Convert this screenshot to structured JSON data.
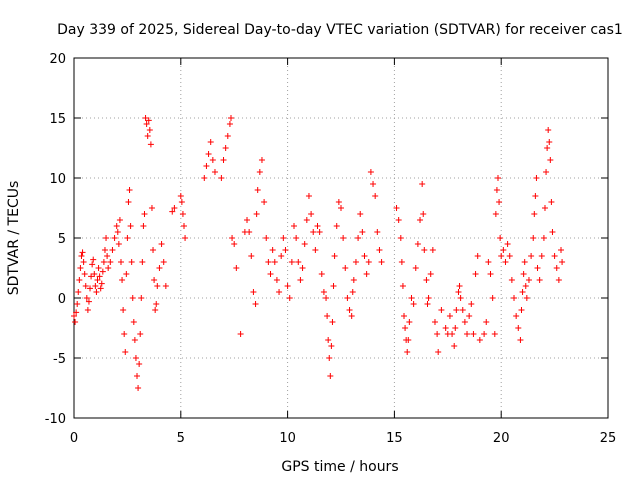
{
  "chart_data": {
    "type": "scatter",
    "title": "Day 339 of 2025, Sidereal Day-to-day VTEC variation (SDTVAR) for receiver cas1",
    "xlabel": "GPS time / hours",
    "ylabel": "SDTVAR / TECUs",
    "xlim": [
      0,
      25
    ],
    "ylim": [
      -10,
      20
    ],
    "x_ticks": [
      0,
      5,
      10,
      15,
      20,
      25
    ],
    "y_ticks": [
      -10,
      -5,
      0,
      5,
      10,
      15,
      20
    ],
    "x_tick_labels": [
      "0",
      "5",
      "10",
      "15",
      "20",
      "25"
    ],
    "y_tick_labels": [
      "-10",
      "-5",
      "0",
      "5",
      "10",
      "15",
      "20"
    ],
    "grid": true,
    "marker": "+",
    "series": [
      {
        "name": "cas1",
        "color": "#ff0000",
        "points": [
          [
            0.0,
            -1.5
          ],
          [
            0.05,
            -2.0
          ],
          [
            0.1,
            -1.2
          ],
          [
            0.15,
            -0.5
          ],
          [
            0.2,
            0.5
          ],
          [
            0.25,
            1.5
          ],
          [
            0.3,
            2.5
          ],
          [
            0.35,
            3.5
          ],
          [
            0.4,
            3.8
          ],
          [
            0.45,
            3.0
          ],
          [
            0.5,
            2.0
          ],
          [
            0.55,
            1.0
          ],
          [
            0.6,
            0.0
          ],
          [
            0.65,
            -1.0
          ],
          [
            0.7,
            -0.3
          ],
          [
            0.75,
            0.8
          ],
          [
            0.8,
            1.8
          ],
          [
            0.85,
            2.8
          ],
          [
            0.9,
            3.2
          ],
          [
            0.95,
            2.0
          ],
          [
            1.0,
            1.0
          ],
          [
            1.05,
            0.5
          ],
          [
            1.1,
            1.5
          ],
          [
            1.15,
            2.5
          ],
          [
            1.2,
            1.8
          ],
          [
            1.25,
            0.8
          ],
          [
            1.3,
            1.2
          ],
          [
            1.35,
            2.2
          ],
          [
            1.4,
            3.0
          ],
          [
            1.45,
            4.0
          ],
          [
            1.5,
            5.0
          ],
          [
            1.55,
            3.5
          ],
          [
            1.6,
            2.5
          ],
          [
            1.7,
            3.0
          ],
          [
            1.8,
            4.0
          ],
          [
            1.9,
            5.0
          ],
          [
            2.0,
            6.0
          ],
          [
            2.05,
            5.5
          ],
          [
            2.1,
            4.5
          ],
          [
            2.15,
            6.5
          ],
          [
            2.2,
            3.0
          ],
          [
            2.25,
            1.5
          ],
          [
            2.3,
            -1.0
          ],
          [
            2.35,
            -3.0
          ],
          [
            2.4,
            -4.5
          ],
          [
            2.45,
            2.0
          ],
          [
            2.5,
            5.0
          ],
          [
            2.55,
            8.0
          ],
          [
            2.6,
            9.0
          ],
          [
            2.65,
            6.0
          ],
          [
            2.7,
            3.0
          ],
          [
            2.75,
            0.0
          ],
          [
            2.8,
            -2.0
          ],
          [
            2.85,
            -3.5
          ],
          [
            2.9,
            -5.0
          ],
          [
            2.95,
            -6.5
          ],
          [
            3.0,
            -7.5
          ],
          [
            3.05,
            -5.5
          ],
          [
            3.1,
            -3.0
          ],
          [
            3.15,
            0.0
          ],
          [
            3.2,
            3.0
          ],
          [
            3.25,
            6.0
          ],
          [
            3.3,
            7.0
          ],
          [
            3.35,
            15.0
          ],
          [
            3.4,
            14.5
          ],
          [
            3.45,
            13.5
          ],
          [
            3.5,
            14.8
          ],
          [
            3.55,
            14.0
          ],
          [
            3.6,
            12.8
          ],
          [
            3.65,
            7.5
          ],
          [
            3.7,
            4.0
          ],
          [
            3.75,
            1.5
          ],
          [
            3.8,
            -1.0
          ],
          [
            3.85,
            -0.5
          ],
          [
            3.9,
            1.0
          ],
          [
            4.0,
            2.5
          ],
          [
            4.1,
            4.5
          ],
          [
            4.2,
            3.0
          ],
          [
            4.3,
            1.0
          ],
          [
            4.6,
            7.2
          ],
          [
            4.7,
            7.5
          ],
          [
            5.0,
            8.5
          ],
          [
            5.05,
            8.0
          ],
          [
            5.1,
            7.0
          ],
          [
            5.15,
            6.0
          ],
          [
            5.2,
            5.0
          ],
          [
            6.1,
            10.0
          ],
          [
            6.2,
            11.0
          ],
          [
            6.3,
            12.0
          ],
          [
            6.4,
            13.0
          ],
          [
            6.5,
            11.5
          ],
          [
            6.6,
            10.5
          ],
          [
            6.9,
            10.0
          ],
          [
            7.0,
            11.5
          ],
          [
            7.1,
            12.5
          ],
          [
            7.2,
            13.5
          ],
          [
            7.3,
            14.5
          ],
          [
            7.35,
            15.0
          ],
          [
            7.4,
            5.0
          ],
          [
            7.5,
            4.5
          ],
          [
            7.6,
            2.5
          ],
          [
            7.8,
            -3.0
          ],
          [
            8.0,
            5.5
          ],
          [
            8.1,
            6.5
          ],
          [
            8.2,
            5.5
          ],
          [
            8.3,
            3.5
          ],
          [
            8.4,
            0.5
          ],
          [
            8.5,
            -0.5
          ],
          [
            8.55,
            7.0
          ],
          [
            8.6,
            9.0
          ],
          [
            8.7,
            10.5
          ],
          [
            8.8,
            11.5
          ],
          [
            8.9,
            8.0
          ],
          [
            9.0,
            5.0
          ],
          [
            9.1,
            3.0
          ],
          [
            9.2,
            2.0
          ],
          [
            9.3,
            4.0
          ],
          [
            9.4,
            3.0
          ],
          [
            9.5,
            1.5
          ],
          [
            9.6,
            0.5
          ],
          [
            9.7,
            3.5
          ],
          [
            9.8,
            5.0
          ],
          [
            9.9,
            4.0
          ],
          [
            10.0,
            1.0
          ],
          [
            10.1,
            0.0
          ],
          [
            10.2,
            3.0
          ],
          [
            10.3,
            6.0
          ],
          [
            10.4,
            5.0
          ],
          [
            10.5,
            3.0
          ],
          [
            10.6,
            1.5
          ],
          [
            10.7,
            2.5
          ],
          [
            10.8,
            4.5
          ],
          [
            10.9,
            6.5
          ],
          [
            11.0,
            8.5
          ],
          [
            11.1,
            7.0
          ],
          [
            11.2,
            5.5
          ],
          [
            11.3,
            4.0
          ],
          [
            11.4,
            6.0
          ],
          [
            11.5,
            5.5
          ],
          [
            11.6,
            2.0
          ],
          [
            11.7,
            0.5
          ],
          [
            11.8,
            0.0
          ],
          [
            11.85,
            -1.5
          ],
          [
            11.9,
            -3.5
          ],
          [
            11.95,
            -5.0
          ],
          [
            12.0,
            -6.5
          ],
          [
            12.05,
            -4.0
          ],
          [
            12.1,
            -2.0
          ],
          [
            12.15,
            1.0
          ],
          [
            12.2,
            3.5
          ],
          [
            12.3,
            6.0
          ],
          [
            12.4,
            8.0
          ],
          [
            12.5,
            7.5
          ],
          [
            12.6,
            5.0
          ],
          [
            12.7,
            2.5
          ],
          [
            12.8,
            0.0
          ],
          [
            12.9,
            -1.0
          ],
          [
            13.0,
            -1.5
          ],
          [
            13.05,
            0.5
          ],
          [
            13.1,
            1.5
          ],
          [
            13.2,
            3.0
          ],
          [
            13.3,
            5.0
          ],
          [
            13.4,
            7.0
          ],
          [
            13.5,
            5.5
          ],
          [
            13.6,
            3.5
          ],
          [
            13.7,
            2.0
          ],
          [
            13.8,
            3.0
          ],
          [
            13.9,
            10.5
          ],
          [
            14.0,
            9.5
          ],
          [
            14.1,
            8.5
          ],
          [
            14.2,
            5.5
          ],
          [
            14.3,
            4.0
          ],
          [
            14.4,
            3.0
          ],
          [
            15.1,
            7.5
          ],
          [
            15.2,
            6.5
          ],
          [
            15.3,
            5.0
          ],
          [
            15.35,
            3.0
          ],
          [
            15.4,
            1.0
          ],
          [
            15.45,
            -1.5
          ],
          [
            15.5,
            -2.5
          ],
          [
            15.55,
            -3.5
          ],
          [
            15.6,
            -4.5
          ],
          [
            15.65,
            -3.5
          ],
          [
            15.7,
            -2.0
          ],
          [
            15.8,
            0.0
          ],
          [
            15.9,
            -0.5
          ],
          [
            16.0,
            2.5
          ],
          [
            16.1,
            4.5
          ],
          [
            16.2,
            6.5
          ],
          [
            16.3,
            9.5
          ],
          [
            16.35,
            7.0
          ],
          [
            16.4,
            4.0
          ],
          [
            16.5,
            1.5
          ],
          [
            16.55,
            -0.5
          ],
          [
            16.6,
            0.0
          ],
          [
            16.7,
            2.0
          ],
          [
            16.8,
            4.0
          ],
          [
            16.9,
            -2.0
          ],
          [
            17.0,
            -3.0
          ],
          [
            17.05,
            -4.5
          ],
          [
            17.2,
            -1.0
          ],
          [
            17.4,
            -2.5
          ],
          [
            17.5,
            -3.0
          ],
          [
            17.6,
            -1.5
          ],
          [
            17.7,
            -3.0
          ],
          [
            17.8,
            -4.0
          ],
          [
            17.85,
            -2.5
          ],
          [
            17.9,
            -1.0
          ],
          [
            18.0,
            0.5
          ],
          [
            18.05,
            1.0
          ],
          [
            18.1,
            0.0
          ],
          [
            18.2,
            -1.0
          ],
          [
            18.3,
            -2.0
          ],
          [
            18.4,
            -3.0
          ],
          [
            18.5,
            -1.5
          ],
          [
            18.6,
            -0.5
          ],
          [
            18.7,
            -3.0
          ],
          [
            18.8,
            2.0
          ],
          [
            18.9,
            3.5
          ],
          [
            19.0,
            -3.5
          ],
          [
            19.2,
            -3.0
          ],
          [
            19.3,
            -2.0
          ],
          [
            19.4,
            3.0
          ],
          [
            19.5,
            2.0
          ],
          [
            19.6,
            0.0
          ],
          [
            19.7,
            -3.0
          ],
          [
            19.75,
            7.0
          ],
          [
            19.8,
            9.0
          ],
          [
            19.85,
            10.0
          ],
          [
            19.9,
            8.0
          ],
          [
            19.95,
            5.0
          ],
          [
            20.0,
            3.5
          ],
          [
            20.1,
            4.0
          ],
          [
            20.2,
            3.0
          ],
          [
            20.3,
            4.5
          ],
          [
            20.4,
            3.5
          ],
          [
            20.5,
            1.5
          ],
          [
            20.6,
            0.0
          ],
          [
            20.7,
            -1.5
          ],
          [
            20.8,
            -2.5
          ],
          [
            20.9,
            -3.5
          ],
          [
            20.95,
            -1.0
          ],
          [
            21.0,
            0.5
          ],
          [
            21.05,
            2.0
          ],
          [
            21.1,
            3.0
          ],
          [
            21.15,
            1.0
          ],
          [
            21.2,
            0.0
          ],
          [
            21.3,
            1.5
          ],
          [
            21.4,
            3.5
          ],
          [
            21.5,
            5.0
          ],
          [
            21.55,
            7.0
          ],
          [
            21.6,
            8.5
          ],
          [
            21.65,
            10.0
          ],
          [
            21.7,
            2.5
          ],
          [
            21.8,
            1.5
          ],
          [
            21.9,
            3.5
          ],
          [
            22.0,
            5.0
          ],
          [
            22.05,
            7.5
          ],
          [
            22.1,
            10.5
          ],
          [
            22.15,
            12.5
          ],
          [
            22.2,
            14.0
          ],
          [
            22.25,
            13.0
          ],
          [
            22.3,
            11.5
          ],
          [
            22.35,
            8.0
          ],
          [
            22.4,
            5.5
          ],
          [
            22.5,
            3.5
          ],
          [
            22.6,
            2.5
          ],
          [
            22.7,
            1.5
          ],
          [
            22.8,
            4.0
          ],
          [
            22.85,
            3.0
          ]
        ]
      }
    ]
  }
}
